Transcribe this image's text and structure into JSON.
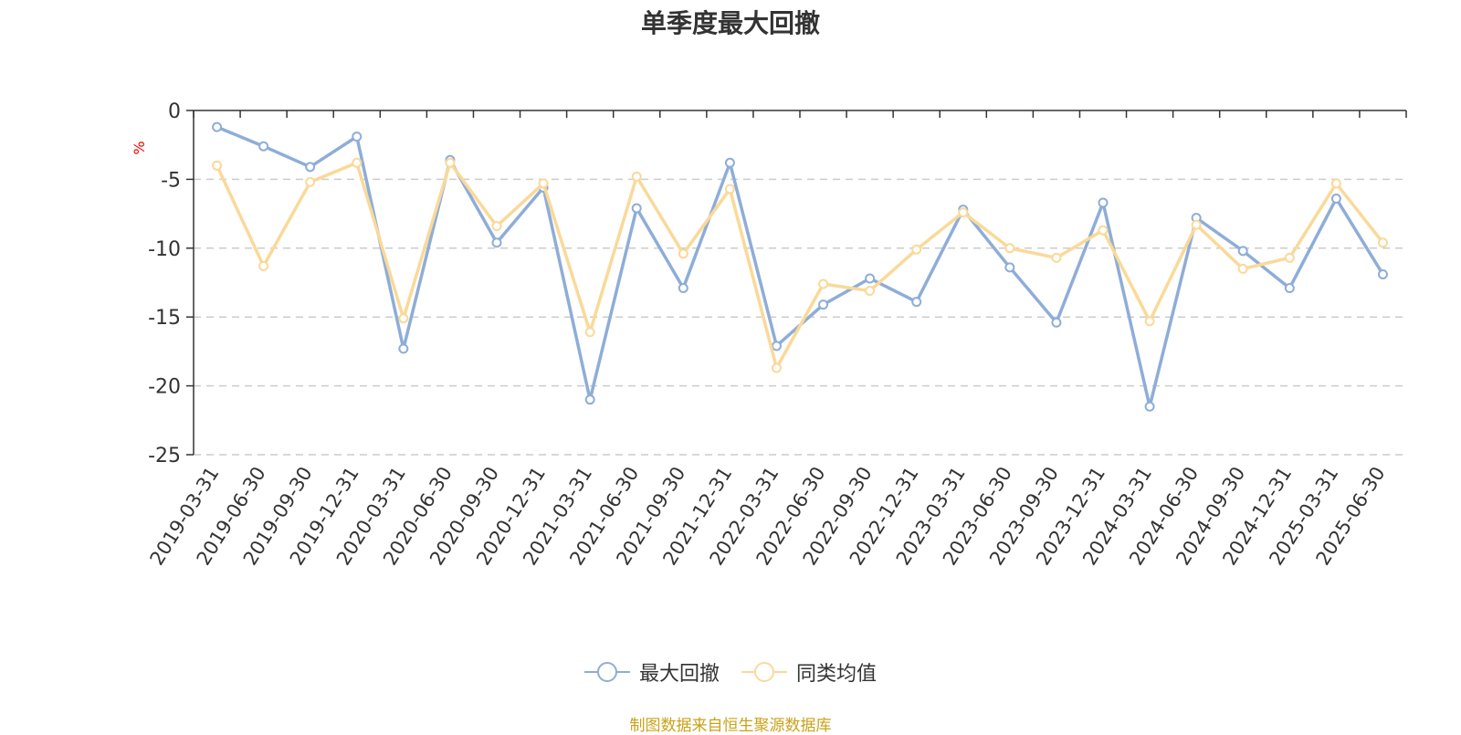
{
  "colors": {
    "series1": "#8eadd8",
    "series2": "#fad999",
    "axis": "#333333",
    "grid": "#cccccc",
    "unit": "#ff0000",
    "source": "#c9a21a"
  },
  "chart_data": {
    "type": "line",
    "title": "单季度最大回撤",
    "ylabel": "%",
    "ylim": [
      -25,
      0
    ],
    "yticks": [
      0,
      -5,
      -10,
      -15,
      -20,
      -25
    ],
    "grid": "horizontal-dashed",
    "legend_position": "bottom-center",
    "categories": [
      "2019-03-31",
      "2019-06-30",
      "2019-09-30",
      "2019-12-31",
      "2020-03-31",
      "2020-06-30",
      "2020-09-30",
      "2020-12-31",
      "2021-03-31",
      "2021-06-30",
      "2021-09-30",
      "2021-12-31",
      "2022-03-31",
      "2022-06-30",
      "2022-09-30",
      "2022-12-31",
      "2023-03-31",
      "2023-06-30",
      "2023-09-30",
      "2023-12-31",
      "2024-03-31",
      "2024-06-30",
      "2024-09-30",
      "2024-12-31",
      "2025-03-31",
      "2025-06-30"
    ],
    "series": [
      {
        "name": "最大回撤",
        "values": [
          -1.2,
          -2.6,
          -4.1,
          -1.9,
          -17.3,
          -3.6,
          -9.6,
          -5.6,
          -21.0,
          -7.1,
          -12.9,
          -3.8,
          -17.1,
          -14.1,
          -12.2,
          -13.9,
          -7.2,
          -11.4,
          -15.4,
          -6.7,
          -21.5,
          -7.8,
          -10.2,
          -12.9,
          -6.4,
          -11.9
        ]
      },
      {
        "name": "同类均值",
        "values": [
          -4.0,
          -11.3,
          -5.2,
          -3.8,
          -15.1,
          -3.8,
          -8.4,
          -5.3,
          -16.1,
          -4.8,
          -10.4,
          -5.7,
          -18.7,
          -12.6,
          -13.1,
          -10.1,
          -7.4,
          -10.0,
          -10.7,
          -8.7,
          -15.3,
          -8.3,
          -11.5,
          -10.7,
          -5.3,
          -9.6
        ]
      }
    ]
  },
  "legend": {
    "items": [
      "最大回撤",
      "同类均值"
    ]
  },
  "footer": {
    "source": "制图数据来自恒生聚源数据库"
  }
}
